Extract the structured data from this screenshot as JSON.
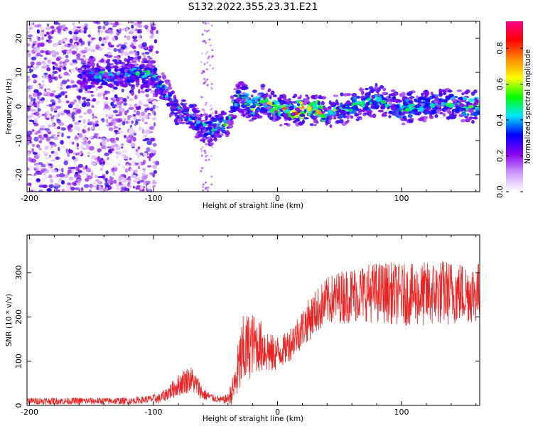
{
  "title": "S132.2022.355.23.31.E21",
  "colors": {
    "snr_line": "#ee2222",
    "frame": "#000000",
    "colorbar_stops": [
      "#ffffff",
      "#cc99ff",
      "#8800ee",
      "#0000ff",
      "#00e5ff",
      "#00ff00",
      "#ffff00",
      "#ff8800",
      "#ff0000",
      "#ff0088"
    ]
  },
  "chart_data": [
    {
      "type": "heatmap",
      "title": "S132.2022.355.23.31.E21",
      "xlabel": "Height of straight line (km)",
      "ylabel": "Frequency (Hz)",
      "xlim": [
        -202,
        163
      ],
      "ylim": [
        -25,
        25
      ],
      "x_ticks": [
        -200,
        -100,
        0,
        100
      ],
      "y_ticks": [
        -20,
        -10,
        0,
        10,
        20
      ],
      "x_tick_labels": [
        "-200",
        "-100",
        "0",
        "100"
      ],
      "y_tick_labels": [
        "-20",
        "-10",
        "0",
        "10",
        "20"
      ],
      "ridge": {
        "x": [
          -160,
          -150,
          -140,
          -130,
          -120,
          -110,
          -100,
          -95,
          -90,
          -85,
          -80,
          -75,
          -70,
          -65,
          -60,
          -55,
          -50,
          -45,
          -40,
          -35,
          -30,
          -25,
          -20,
          -15,
          -10,
          -5,
          0,
          10,
          20,
          30,
          40,
          50,
          60,
          70,
          80,
          90,
          100,
          110,
          120,
          130,
          140,
          150,
          160
        ],
        "y": [
          9,
          10,
          9,
          9,
          10,
          10,
          9,
          7,
          4,
          1,
          -1,
          -2,
          -3,
          -5,
          -6,
          -7,
          -6,
          -5,
          -5,
          1,
          3,
          1,
          0,
          1,
          2,
          0,
          -1,
          -1,
          -1,
          -1,
          -2,
          -1,
          0,
          1,
          2,
          1,
          -1,
          0,
          0,
          1,
          1,
          0,
          0
        ],
        "amplitude": [
          0.3,
          0.35,
          0.45,
          0.35,
          0.4,
          0.45,
          0.45,
          0.45,
          0.4,
          0.4,
          0.45,
          0.45,
          0.35,
          0.4,
          0.45,
          0.45,
          0.4,
          0.45,
          0.5,
          0.45,
          0.45,
          0.5,
          0.55,
          0.5,
          0.55,
          0.6,
          0.65,
          0.7,
          0.75,
          0.7,
          0.6,
          0.45,
          0.45,
          0.45,
          0.45,
          0.45,
          0.45,
          0.45,
          0.45,
          0.45,
          0.5,
          0.5,
          0.55
        ]
      },
      "colorbar": {
        "label": "Normalized spectral amplitude",
        "range": [
          0,
          0.95
        ],
        "ticks": [
          0.0,
          0.2,
          0.4,
          0.6,
          0.8
        ],
        "tick_labels": [
          "0.0",
          "0.2",
          "0.4",
          "0.6",
          "0.8"
        ]
      }
    },
    {
      "type": "line",
      "xlabel": "Height of straight line (km)",
      "ylabel": "SNR (10 * v/v)",
      "xlim": [
        -202,
        163
      ],
      "ylim": [
        0,
        385
      ],
      "x_ticks": [
        -200,
        -100,
        0,
        100
      ],
      "y_ticks": [
        0,
        100,
        200,
        300
      ],
      "x_tick_labels": [
        "-200",
        "-100",
        "0",
        "100"
      ],
      "y_tick_labels": [
        "0",
        "100",
        "200",
        "300"
      ],
      "series": [
        {
          "x": [
            -202,
            -190,
            -180,
            -170,
            -160,
            -150,
            -140,
            -130,
            -120,
            -110,
            -100,
            -95,
            -90,
            -85,
            -80,
            -75,
            -70,
            -65,
            -60,
            -55,
            -50,
            -45,
            -40,
            -35,
            -30,
            -27,
            -24,
            -20,
            -15,
            -10,
            -5,
            0,
            5,
            10,
            20,
            30,
            40,
            50,
            60,
            70,
            80,
            90,
            100,
            110,
            120,
            130,
            140,
            150,
            163
          ],
          "mean": [
            10,
            10,
            10,
            10,
            10,
            10,
            10,
            10,
            10,
            12,
            15,
            15,
            25,
            35,
            45,
            55,
            60,
            45,
            25,
            20,
            15,
            12,
            15,
            40,
            100,
            120,
            130,
            140,
            135,
            130,
            115,
            120,
            125,
            140,
            175,
            210,
            235,
            245,
            250,
            255,
            255,
            255,
            250,
            250,
            250,
            255,
            255,
            255,
            255
          ],
          "spread": [
            8,
            8,
            8,
            8,
            8,
            8,
            8,
            8,
            8,
            8,
            10,
            12,
            15,
            20,
            25,
            30,
            30,
            25,
            15,
            10,
            8,
            8,
            12,
            40,
            80,
            90,
            80,
            70,
            60,
            60,
            45,
            40,
            35,
            40,
            45,
            50,
            55,
            60,
            65,
            65,
            70,
            70,
            70,
            70,
            75,
            75,
            75,
            70,
            70
          ]
        }
      ]
    }
  ]
}
